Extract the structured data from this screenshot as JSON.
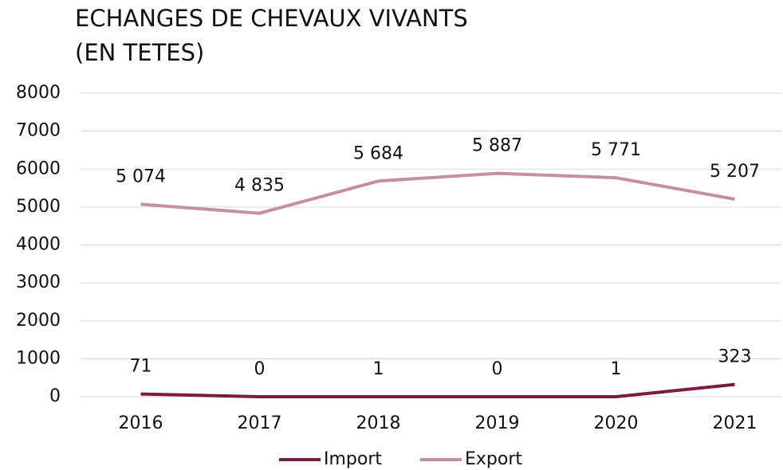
{
  "chart_data": {
    "type": "line",
    "title": [
      "ECHANGES DE CHEVAUX VIVANTS",
      "(EN TETES)"
    ],
    "categories": [
      "2016",
      "2017",
      "2018",
      "2019",
      "2020",
      "2021"
    ],
    "series": [
      {
        "name": "Import",
        "color": "#7b1a42",
        "values": [
          71,
          0,
          1,
          0,
          1,
          323
        ],
        "value_labels": [
          "71",
          "0",
          "1",
          "0",
          "1",
          "323"
        ]
      },
      {
        "name": "Export",
        "color": "#c48fa3",
        "values": [
          5074,
          4835,
          5684,
          5887,
          5771,
          5207
        ],
        "value_labels": [
          "5 074",
          "4 835",
          "5 684",
          "5 887",
          "5 771",
          "5 207"
        ]
      }
    ],
    "ylim": [
      0,
      8000
    ],
    "yticks": [
      0,
      1000,
      2000,
      3000,
      4000,
      5000,
      6000,
      7000,
      8000
    ],
    "grid": true,
    "legend": "bottom"
  }
}
